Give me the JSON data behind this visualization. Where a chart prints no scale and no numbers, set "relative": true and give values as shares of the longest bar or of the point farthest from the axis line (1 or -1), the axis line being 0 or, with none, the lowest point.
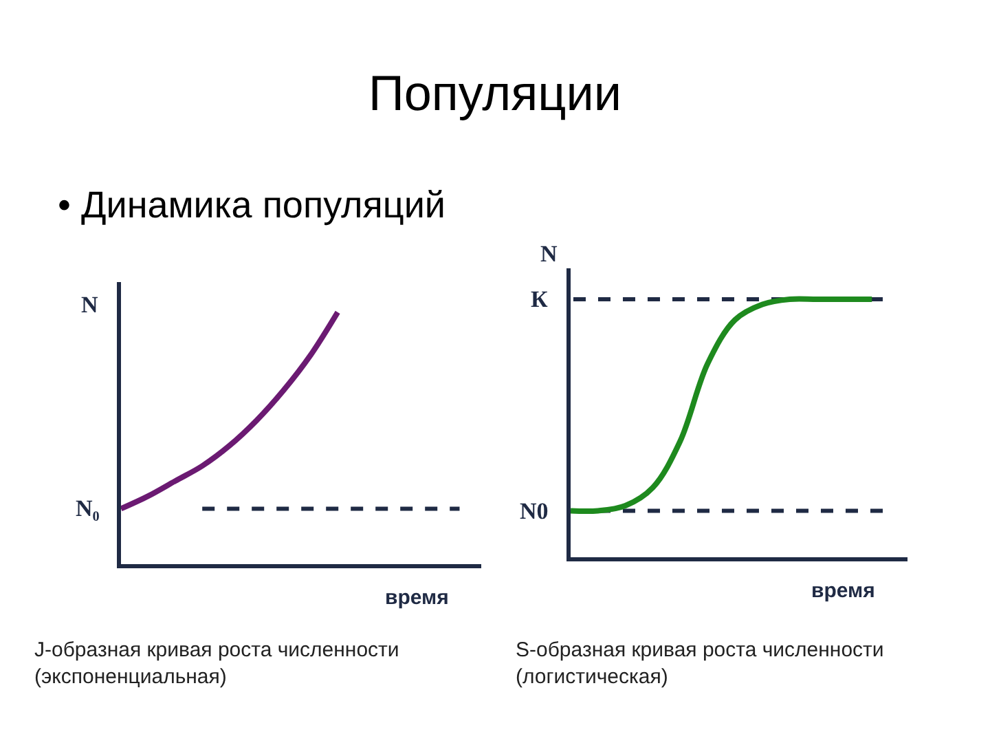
{
  "chart_data": [
    {
      "type": "line",
      "title": "Популяции",
      "subtitle": "• Динамика популяций",
      "relative": true,
      "ylabel": "N",
      "xlabel": "время",
      "categories": [
        null,
        null,
        null,
        null,
        null,
        null,
        null,
        null,
        null,
        null,
        null,
        null,
        null,
        null
      ],
      "series": [
        {
          "color": "#6b1a72",
          "values": [
            0.22,
            0.27,
            0.33,
            0.39,
            0.47,
            0.57,
            0.69,
            0.83,
            1.0,
            null,
            null,
            null,
            null,
            null
          ]
        }
      ],
      "ref_lines": [
        {
          "axis": "y",
          "value": 0.22,
          "label": "N₀",
          "color": "#1f2a44",
          "line_style": "dashed"
        }
      ],
      "annotations": [
        "J-образная кривая роста численности\n(экспоненциальная)"
      ],
      "grid": false,
      "marker": "none",
      "line_style": "solid"
    },
    {
      "type": "line",
      "relative": true,
      "ylabel": "N",
      "xlabel": "время",
      "categories": [
        null,
        null,
        null,
        null,
        null,
        null,
        null,
        null,
        null,
        null,
        null,
        null,
        null
      ],
      "series": [
        {
          "color": "#1e8a1e",
          "values": [
            0.18,
            0.18,
            0.2,
            0.27,
            0.45,
            0.75,
            0.92,
            0.98,
            1.0,
            1.0,
            1.0,
            1.0,
            null
          ]
        }
      ],
      "ref_lines": [
        {
          "axis": "y",
          "value": 1.0,
          "label": "К",
          "color": "#1f2a44",
          "line_style": "dashed"
        },
        {
          "axis": "y",
          "value": 0.18,
          "label": "N0",
          "color": "#1f2a44",
          "line_style": "dashed"
        }
      ],
      "annotations": [
        "S-образная кривая роста численности\n(логистическая)"
      ],
      "grid": false,
      "marker": "none",
      "line_style": "solid"
    }
  ]
}
